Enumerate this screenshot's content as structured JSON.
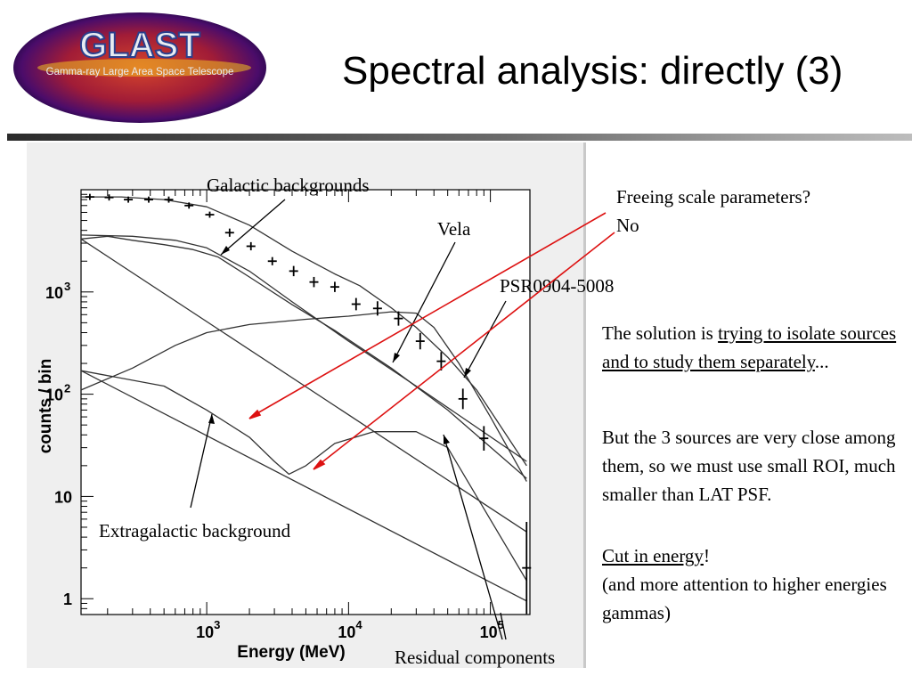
{
  "slide": {
    "title": "Spectral analysis: directly (3)",
    "logo": {
      "icon": "glast-logo",
      "text": "GLAST",
      "subtitle": "Gamma-ray Large Area Space Telescope"
    }
  },
  "annotations": {
    "galactic": "Galactic backgrounds",
    "vela": "Vela",
    "psr": "PSR0904-5008",
    "extragalactic": "Extragalactic background",
    "residual": "Residual components"
  },
  "right_text": {
    "freeing": "Freeing scale parameters?",
    "no": "No",
    "solution_pre": "The solution is ",
    "solution_underlined": "trying to isolate sources and to study them separately",
    "solution_post": "...",
    "but": "But the 3 sources are very close among them, so we must use small ROI, much smaller than LAT PSF.",
    "cut": "Cut in energy",
    "cut_post": "!",
    "more": "(and more attention to higher energies gammas)"
  },
  "colors": {
    "arrow_red": "#dd1111",
    "curve": "#333333",
    "panel": "#efefef"
  },
  "chart_data": {
    "type": "line",
    "title": "",
    "xlabel": "Energy (MeV)",
    "ylabel": "counts / bin",
    "xscale": "log",
    "yscale": "log",
    "xlim": [
      130,
      190000
    ],
    "ylim": [
      0.7,
      10000
    ],
    "xticks": [
      {
        "base": "10",
        "exp": "3",
        "value": 1000
      },
      {
        "base": "10",
        "exp": "4",
        "value": 10000
      },
      {
        "base": "10",
        "exp": "5",
        "value": 100000
      }
    ],
    "yticks": [
      {
        "base": "1",
        "exp": "",
        "value": 1
      },
      {
        "base": "10",
        "exp": "",
        "value": 10
      },
      {
        "base": "10",
        "exp": "2",
        "value": 100
      },
      {
        "base": "10",
        "exp": "3",
        "value": 1000
      }
    ],
    "data_points": [
      {
        "x": 150,
        "y": 8500,
        "err": 0.03
      },
      {
        "x": 205,
        "y": 8400,
        "err": 0.03
      },
      {
        "x": 280,
        "y": 8000,
        "err": 0.03
      },
      {
        "x": 390,
        "y": 8000,
        "err": 0.03
      },
      {
        "x": 540,
        "y": 8000,
        "err": 0.03
      },
      {
        "x": 750,
        "y": 7000,
        "err": 0.03
      },
      {
        "x": 1050,
        "y": 5700,
        "err": 0.03
      },
      {
        "x": 1450,
        "y": 3800,
        "err": 0.04
      },
      {
        "x": 2050,
        "y": 2800,
        "err": 0.04
      },
      {
        "x": 2900,
        "y": 2000,
        "err": 0.04
      },
      {
        "x": 4100,
        "y": 1600,
        "err": 0.05
      },
      {
        "x": 5700,
        "y": 1250,
        "err": 0.05
      },
      {
        "x": 8000,
        "y": 1120,
        "err": 0.05
      },
      {
        "x": 11300,
        "y": 760,
        "err": 0.06
      },
      {
        "x": 16000,
        "y": 690,
        "err": 0.07
      },
      {
        "x": 22500,
        "y": 550,
        "err": 0.07
      },
      {
        "x": 32000,
        "y": 330,
        "err": 0.08
      },
      {
        "x": 45000,
        "y": 210,
        "err": 0.09
      },
      {
        "x": 64000,
        "y": 90,
        "err": 0.1
      },
      {
        "x": 90000,
        "y": 37,
        "err": 0.12
      },
      {
        "x": 180000,
        "y": 2,
        "err": 0.45
      }
    ],
    "series": [
      {
        "x": [
          130,
          250,
          500,
          1000,
          2000,
          4000,
          8000,
          12000,
          20000,
          30000,
          50000,
          80000,
          180000
        ],
        "y": [
          8500,
          8500,
          8000,
          6800,
          4500,
          2500,
          1500,
          1150,
          700,
          450,
          230,
          110,
          20
        ]
      },
      {
        "x": [
          130,
          200,
          300,
          500,
          800,
          1200,
          2000,
          4000,
          8000,
          20000,
          50000,
          180000
        ],
        "y": [
          3300,
          3500,
          3200,
          2900,
          2600,
          2200,
          1400,
          750,
          420,
          180,
          70,
          15
        ]
      },
      {
        "x": [
          130,
          300,
          600,
          1000,
          2000,
          4000,
          10000,
          30000,
          180000
        ],
        "y": [
          3600,
          3500,
          3200,
          2700,
          1600,
          800,
          330,
          120,
          22
        ]
      },
      {
        "x": [
          130,
          300,
          600,
          1000,
          2000,
          5000,
          10000,
          20000,
          30000,
          40000,
          60000,
          100000,
          180000
        ],
        "y": [
          110,
          180,
          300,
          400,
          480,
          540,
          580,
          640,
          620,
          450,
          200,
          60,
          14
        ]
      },
      {
        "x": [
          130,
          500,
          1000,
          2000,
          3000,
          3800,
          5000,
          8000,
          15000,
          30000,
          50000,
          80000,
          180000
        ],
        "y": [
          170,
          120,
          70,
          38,
          22,
          16.5,
          20,
          33,
          43,
          43,
          30,
          10,
          1.5
        ]
      },
      {
        "x": [
          130,
          180000
        ],
        "y": [
          3300,
          4.5
        ]
      },
      {
        "x": [
          130,
          180000
        ],
        "y": [
          170,
          0.95
        ]
      }
    ]
  }
}
